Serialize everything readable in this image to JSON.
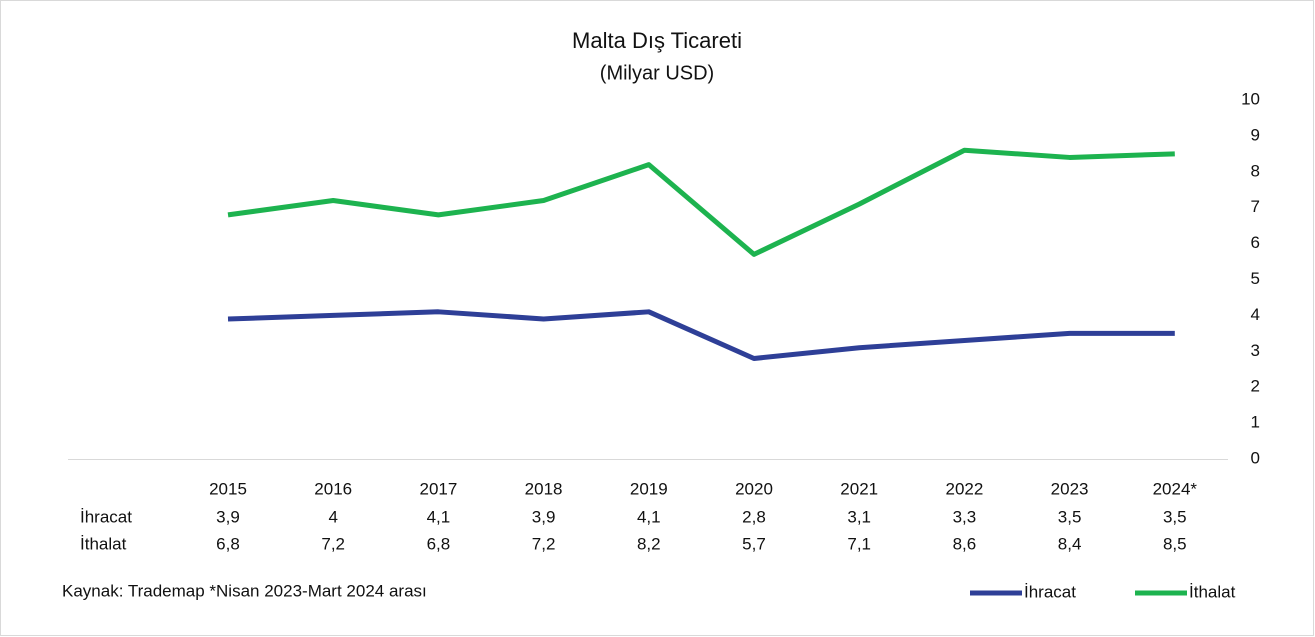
{
  "chart_data": {
    "type": "line",
    "title": "Malta Dış Ticareti",
    "subtitle": "(Milyar USD)",
    "categories": [
      "2015",
      "2016",
      "2017",
      "2018",
      "2019",
      "2020",
      "2021",
      "2022",
      "2023",
      "2024*"
    ],
    "series": [
      {
        "name": "İhracat",
        "color": "#2e3f97",
        "values": [
          3.9,
          4,
          4.1,
          3.9,
          4.1,
          2.8,
          3.1,
          3.3,
          3.5,
          3.5
        ],
        "value_labels": [
          "3,9",
          "4",
          "4,1",
          "3,9",
          "4,1",
          "2,8",
          "3,1",
          "3,3",
          "3,5",
          "3,5"
        ]
      },
      {
        "name": "İthalat",
        "color": "#1db34f",
        "values": [
          6.8,
          7.2,
          6.8,
          7.2,
          8.2,
          5.7,
          7.1,
          8.6,
          8.4,
          8.5
        ],
        "value_labels": [
          "6,8",
          "7,2",
          "6,8",
          "7,2",
          "8,2",
          "5,7",
          "7,1",
          "8,6",
          "8,4",
          "8,5"
        ]
      }
    ],
    "ylim": [
      0,
      10
    ],
    "yticks": [
      0,
      1,
      2,
      3,
      4,
      5,
      6,
      7,
      8,
      9,
      10
    ],
    "y_axis_side": "right",
    "grid": false,
    "legend": "bottom-right",
    "note": "Kaynak: Trademap  *Nisan 2023-Mart 2024 arası"
  }
}
